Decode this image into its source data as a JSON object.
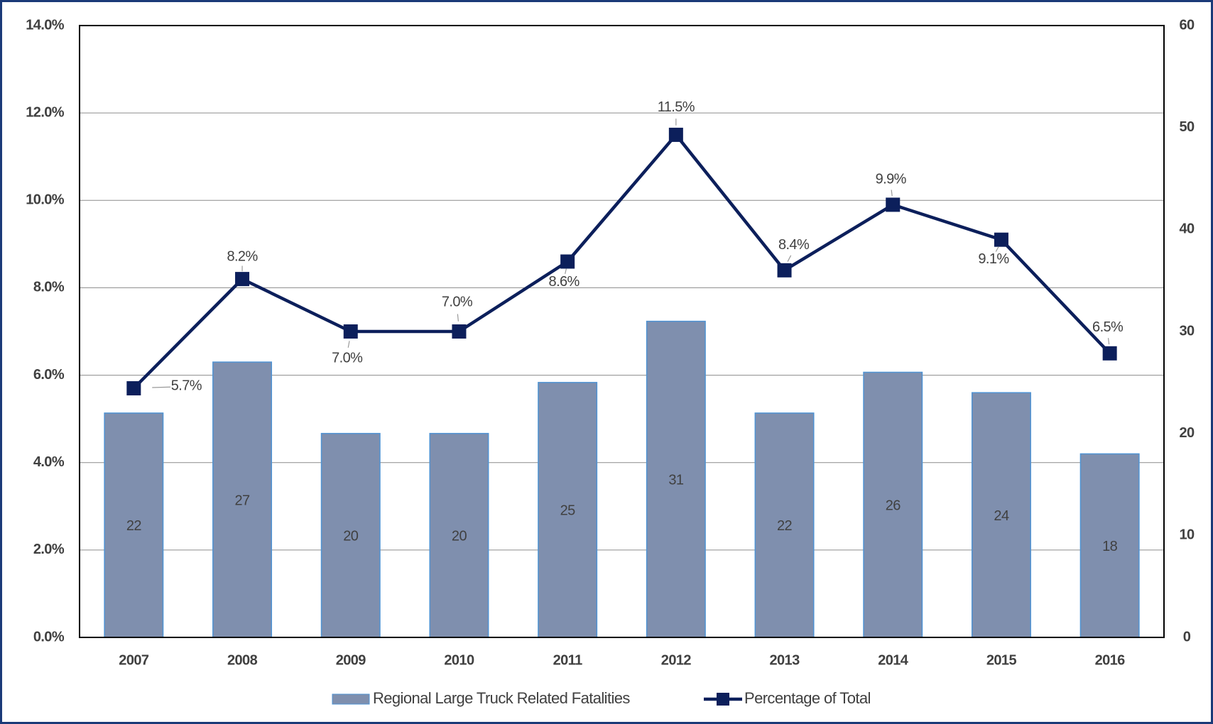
{
  "chart_data": {
    "type": "combo",
    "categories": [
      "2007",
      "2008",
      "2009",
      "2010",
      "2011",
      "2012",
      "2013",
      "2014",
      "2015",
      "2016"
    ],
    "ylim": [
      0,
      14
    ],
    "yticks": [
      {
        "value": 0,
        "label": "0.0%"
      },
      {
        "value": 2,
        "label": "2.0%"
      },
      {
        "value": 4,
        "label": "4.0%"
      },
      {
        "value": 6,
        "label": "6.0%"
      },
      {
        "value": 8,
        "label": "8.0%"
      },
      {
        "value": 10,
        "label": "10.0%"
      },
      {
        "value": 12,
        "label": "12.0%"
      },
      {
        "value": 14,
        "label": "14.0%"
      }
    ],
    "y2lim": [
      0,
      60
    ],
    "y2ticks": [
      0,
      10,
      20,
      30,
      40,
      50,
      60
    ],
    "grid": true,
    "legend": "bottom",
    "series": [
      {
        "name": "Regional Large Truck Related Fatalities",
        "type": "bar",
        "axis": "y2",
        "color": "#7f8fae",
        "values": [
          22,
          27,
          20,
          20,
          25,
          31,
          22,
          26,
          24,
          18
        ]
      },
      {
        "name": "Percentage of Total",
        "type": "line",
        "color": "#0c1f5b",
        "values": [
          5.7,
          8.2,
          7.0,
          7.0,
          8.6,
          11.5,
          8.4,
          9.9,
          9.1,
          6.5
        ],
        "value_labels": [
          "5.7%",
          "8.2%",
          "7.0%",
          "7.0%",
          "8.6%",
          "11.5%",
          "8.4%",
          "9.9%",
          "9.1%",
          "6.5%"
        ]
      }
    ]
  }
}
